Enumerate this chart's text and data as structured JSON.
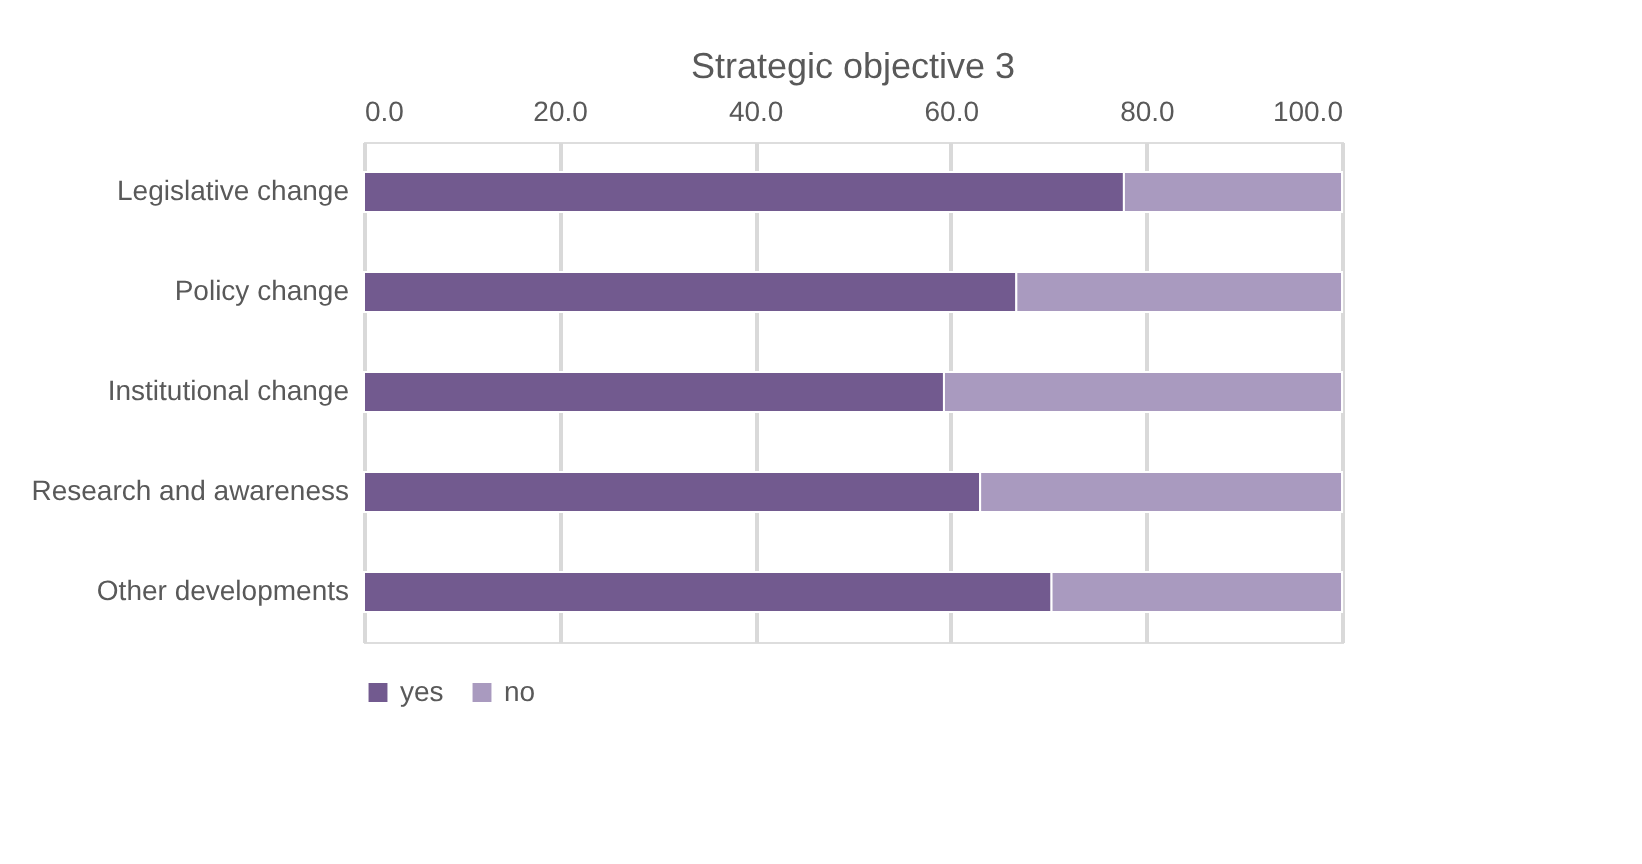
{
  "chart_data": {
    "type": "bar",
    "orientation": "horizontal",
    "stacked": true,
    "title": "Strategic objective 3",
    "categories": [
      "Legislative change",
      "Policy change",
      "Institutional change",
      "Research and awareness",
      "Other developments"
    ],
    "series": [
      {
        "name": "yes",
        "color": "#725a8f",
        "values": [
          77.7,
          66.7,
          59.3,
          63.0,
          70.3
        ]
      },
      {
        "name": "no",
        "color": "#a99abf",
        "values": [
          22.3,
          33.3,
          40.7,
          37.0,
          29.7
        ]
      }
    ],
    "xlim": [
      0,
      100
    ],
    "xticks": [
      {
        "value": 0,
        "label": "0.0"
      },
      {
        "value": 20,
        "label": "20.0"
      },
      {
        "value": 40,
        "label": "40.0"
      },
      {
        "value": 60,
        "label": "60.0"
      },
      {
        "value": 80,
        "label": "80.0"
      },
      {
        "value": 100,
        "label": "100.0"
      }
    ],
    "grid": "x",
    "legend": "bottom"
  }
}
